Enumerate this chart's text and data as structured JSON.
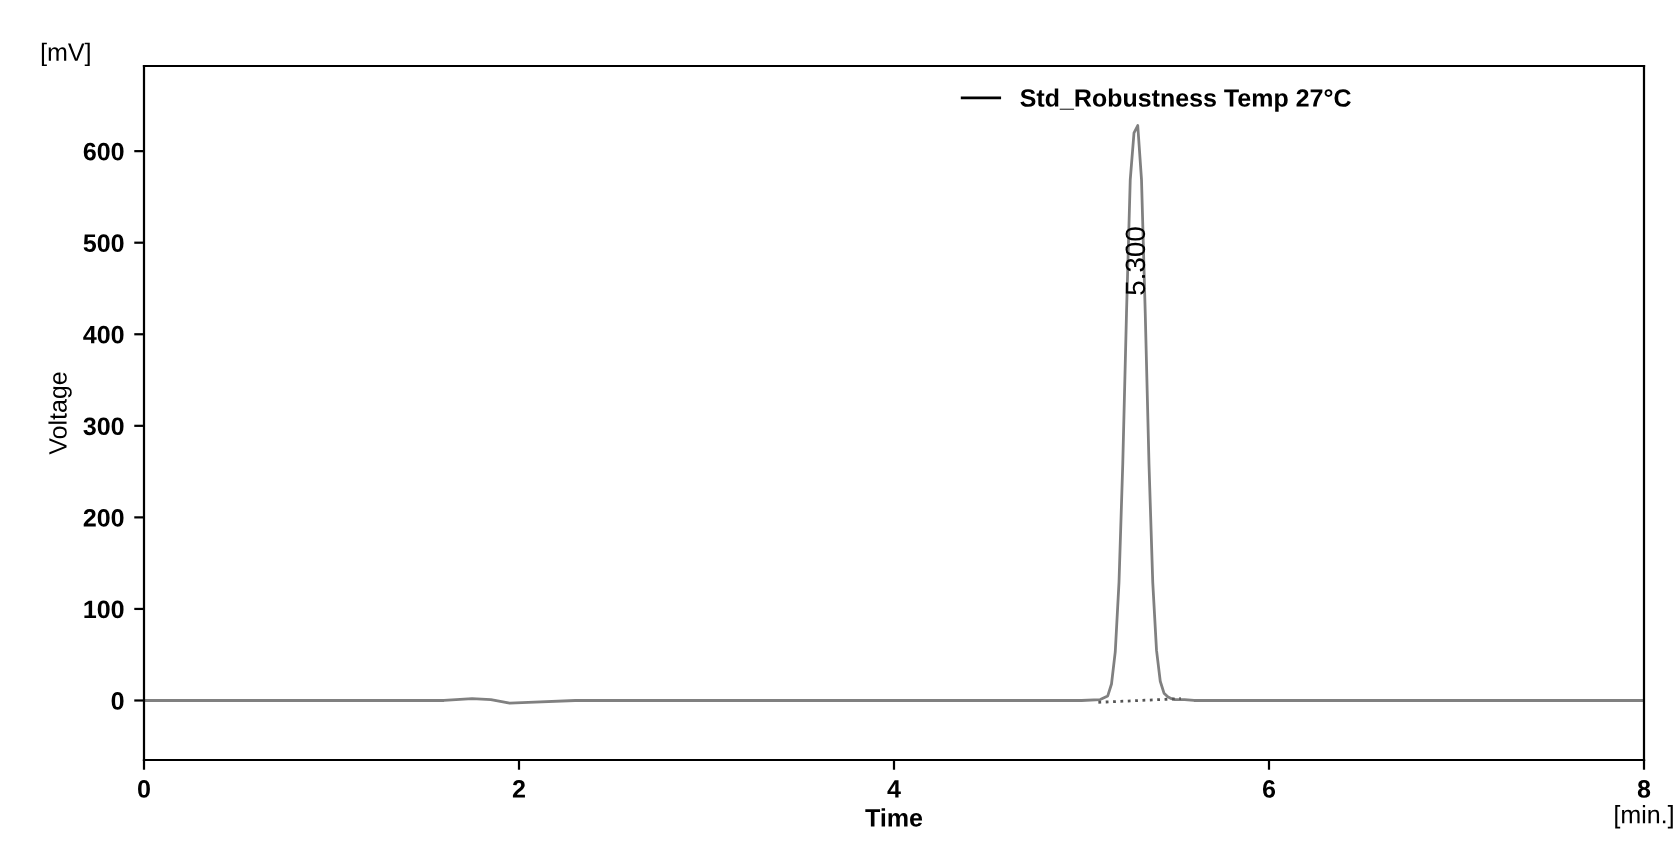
{
  "chart_data": {
    "type": "line",
    "xlabel": "Time",
    "ylabel": "Voltage",
    "xlim": [
      0,
      8
    ],
    "ylim": [
      -65,
      693
    ],
    "xticks": [
      0,
      2,
      4,
      6,
      8
    ],
    "yticks": [
      0,
      100,
      200,
      300,
      400,
      500,
      600
    ],
    "grid": false,
    "legend": "top right",
    "marker": "none",
    "annotations": [
      "[mV]",
      "[min.]",
      {
        "text": "5.300",
        "x": 5.3,
        "y": 480
      }
    ],
    "series": [
      {
        "name": "Std_Robustness Temp 27°C",
        "color": "#808080",
        "line_style": "solid",
        "x": [
          0,
          1.6,
          1.75,
          1.85,
          1.95,
          2.05,
          2.3,
          3,
          4,
          4.6,
          5.0,
          5.1,
          5.14,
          5.16,
          5.18,
          5.2,
          5.22,
          5.24,
          5.26,
          5.28,
          5.3,
          5.32,
          5.34,
          5.36,
          5.38,
          5.4,
          5.42,
          5.44,
          5.46,
          5.48,
          5.5,
          5.55,
          5.6,
          6,
          7,
          8
        ],
        "values": [
          0,
          0,
          2,
          1,
          -3,
          -2,
          0,
          0,
          0,
          0,
          0,
          1,
          5,
          18,
          53,
          129,
          258,
          423,
          569,
          620,
          628,
          569,
          423,
          258,
          129,
          55,
          21,
          8,
          4,
          2,
          1,
          1,
          0,
          0,
          0,
          0
        ]
      },
      {
        "color": "#555555",
        "line_style": "dotted",
        "x": [
          5.09,
          5.53
        ],
        "values": [
          -2,
          2
        ]
      }
    ]
  }
}
